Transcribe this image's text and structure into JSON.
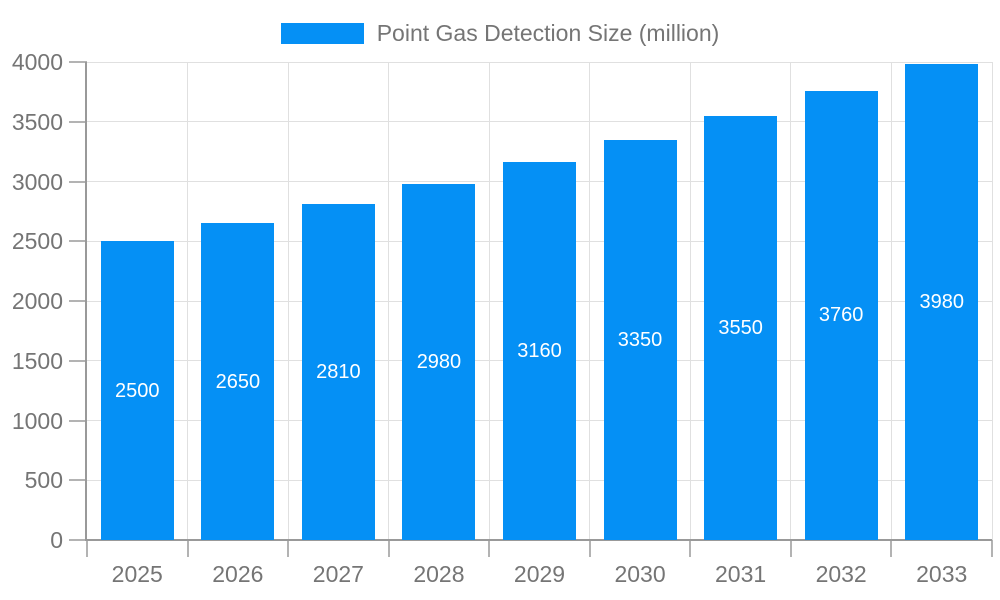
{
  "chart_data": {
    "type": "bar",
    "title": "",
    "legend": {
      "label": "Point Gas Detection Size (million)",
      "position": "top-center"
    },
    "categories": [
      "2025",
      "2026",
      "2027",
      "2028",
      "2029",
      "2030",
      "2031",
      "2032",
      "2033"
    ],
    "series": [
      {
        "name": "Point Gas Detection Size (million)",
        "values": [
          2500,
          2650,
          2810,
          2980,
          3160,
          3350,
          3550,
          3760,
          3980
        ]
      }
    ],
    "value_labels": {
      "position": "inside-center",
      "color": "#ffffff"
    },
    "xlabel": "",
    "ylabel": "",
    "ylim": [
      0,
      4000
    ],
    "yticks": [
      0,
      500,
      1000,
      1500,
      2000,
      2500,
      3000,
      3500,
      4000
    ],
    "grid": true,
    "colors": {
      "bar": "#0590f5",
      "axis_text": "#757575",
      "axis_line": "#999999",
      "tick": "#b3b3b3",
      "gridline": "#e0e0e0",
      "background": "#ffffff"
    }
  }
}
